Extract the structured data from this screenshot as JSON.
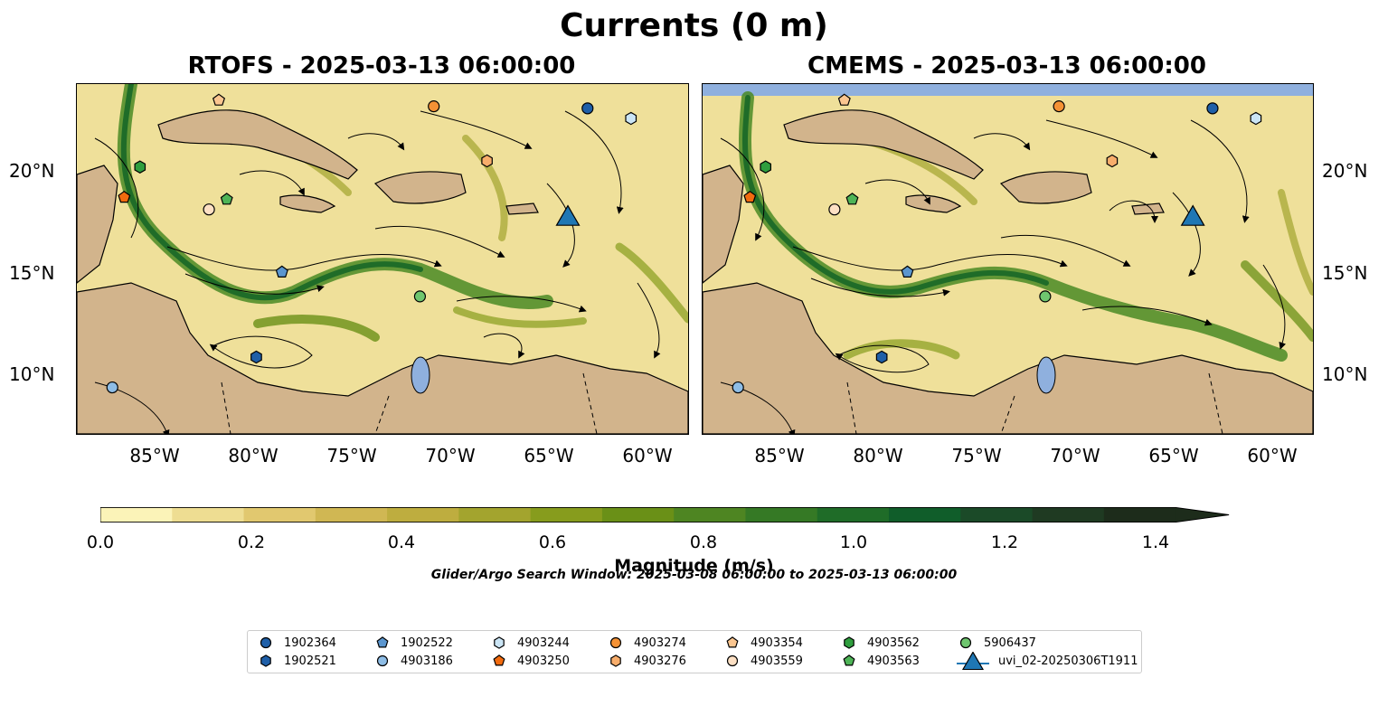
{
  "suptitle": "Currents (0 m)",
  "panels": [
    {
      "title": "RTOFS - 2025-03-13 06:00:00"
    },
    {
      "title": "CMEMS - 2025-03-13 06:00:00"
    }
  ],
  "lat_ticks": [
    "20°N",
    "15°N",
    "10°N"
  ],
  "lon_ticks": [
    "85°W",
    "80°W",
    "75°W",
    "70°W",
    "65°W",
    "60°W"
  ],
  "colorbar": {
    "label": "Magnitude (m/s)",
    "ticks": [
      "0.0",
      "0.2",
      "0.4",
      "0.6",
      "0.8",
      "1.0",
      "1.2",
      "1.4"
    ],
    "range": [
      0.0,
      1.5
    ],
    "colors": [
      "#fbf3b8",
      "#eedd92",
      "#e1c86f",
      "#d0b753",
      "#bead3f",
      "#a3a42e",
      "#879c1d",
      "#6a9017",
      "#4e8522",
      "#357925",
      "#1f6c28",
      "#105d2a",
      "#1b4a28",
      "#1f3a22",
      "#1d2c1b"
    ],
    "extend": "max"
  },
  "search_window": "Glider/Argo Search Window: 2025-03-08 06:00:00 to 2025-03-13 06:00:00",
  "map": {
    "land_color": "#d2b48c",
    "water_color": "#8fb0de",
    "lon_range": [
      -89,
      -58
    ],
    "lat_range": [
      7,
      24.3
    ]
  },
  "legend": {
    "items": [
      {
        "label": "1902364",
        "marker": "circle",
        "color": "#1f5fa8"
      },
      {
        "label": "1902521",
        "marker": "hexagon",
        "color": "#1f5fa8"
      },
      {
        "label": "1902522",
        "marker": "pentagon",
        "color": "#5b96cf"
      },
      {
        "label": "4903186",
        "marker": "circle",
        "color": "#8ebde6"
      },
      {
        "label": "4903244",
        "marker": "hexagon",
        "color": "#cbe5f5"
      },
      {
        "label": "4903250",
        "marker": "pentagon",
        "color": "#f26b0f"
      },
      {
        "label": "4903274",
        "marker": "circle",
        "color": "#f59235"
      },
      {
        "label": "4903276",
        "marker": "hexagon",
        "color": "#f8ad6b"
      },
      {
        "label": "4903354",
        "marker": "pentagon",
        "color": "#fbc690"
      },
      {
        "label": "4903559",
        "marker": "circle",
        "color": "#fde0c4"
      },
      {
        "label": "4903562",
        "marker": "hexagon",
        "color": "#2f9e3e"
      },
      {
        "label": "4903563",
        "marker": "pentagon",
        "color": "#4eb457"
      },
      {
        "label": "5906437",
        "marker": "circle",
        "color": "#6fc66f"
      },
      {
        "label": "uvi_02-20250306T1911",
        "marker": "triangle",
        "color": "#1f77b4"
      }
    ]
  },
  "platforms": [
    {
      "label": "1902364",
      "lon": -63.1,
      "lat": 23.1
    },
    {
      "label": "1902521",
      "lon": -79.9,
      "lat": 10.8
    },
    {
      "label": "1902522",
      "lon": -78.6,
      "lat": 15.0
    },
    {
      "label": "4903186",
      "lon": -87.2,
      "lat": 9.3
    },
    {
      "label": "4903244",
      "lon": -60.9,
      "lat": 22.6
    },
    {
      "label": "4903250",
      "lon": -86.6,
      "lat": 18.7
    },
    {
      "label": "4903274",
      "lon": -70.9,
      "lat": 23.2
    },
    {
      "label": "4903276",
      "lon": -68.2,
      "lat": 20.5
    },
    {
      "label": "4903354",
      "lon": -81.8,
      "lat": 23.5
    },
    {
      "label": "4903559",
      "lon": -82.3,
      "lat": 18.1
    },
    {
      "label": "4903562",
      "lon": -85.8,
      "lat": 20.2
    },
    {
      "label": "4903563",
      "lon": -81.4,
      "lat": 18.6
    },
    {
      "label": "5906437",
      "lon": -71.6,
      "lat": 13.8
    },
    {
      "label": "uvi_02-20250306T1911",
      "lon": -64.1,
      "lat": 17.8
    }
  ]
}
